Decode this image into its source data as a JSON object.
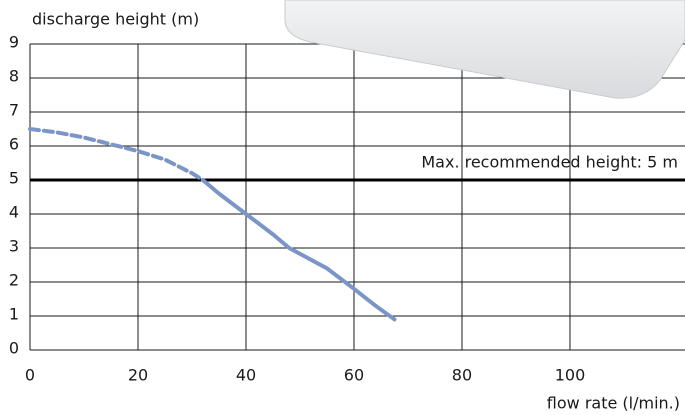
{
  "chart_data": {
    "type": "line",
    "y_label": "discharge height (m)",
    "x_label": "flow rate  (l/min.)",
    "x": [
      0,
      5,
      10,
      15,
      20,
      25,
      30,
      32,
      35,
      40,
      45,
      48,
      55,
      60,
      64,
      67.5
    ],
    "series": [
      {
        "color": "#7b95c6",
        "style": "dashed",
        "values": [
          6.5,
          6.4,
          6.25,
          6.05,
          5.85,
          5.6,
          5.2,
          5.0,
          null,
          null,
          null,
          null,
          null,
          null,
          null,
          null
        ]
      },
      {
        "color": "#7b95c6",
        "style": "solid",
        "values": [
          null,
          null,
          null,
          null,
          null,
          null,
          null,
          5.0,
          4.6,
          4.0,
          3.4,
          3.0,
          2.4,
          1.8,
          1.3,
          0.9
        ]
      }
    ],
    "reference_line": {
      "value": 5,
      "label": "Max. recommended height: 5 m"
    },
    "xlim": [
      0,
      121.3
    ],
    "ylim": [
      0,
      9
    ],
    "xticks": [
      0,
      20,
      40,
      60,
      80,
      100
    ],
    "yticks": [
      0,
      1,
      2,
      3,
      4,
      5,
      6,
      7,
      8,
      9
    ],
    "grid": true
  }
}
